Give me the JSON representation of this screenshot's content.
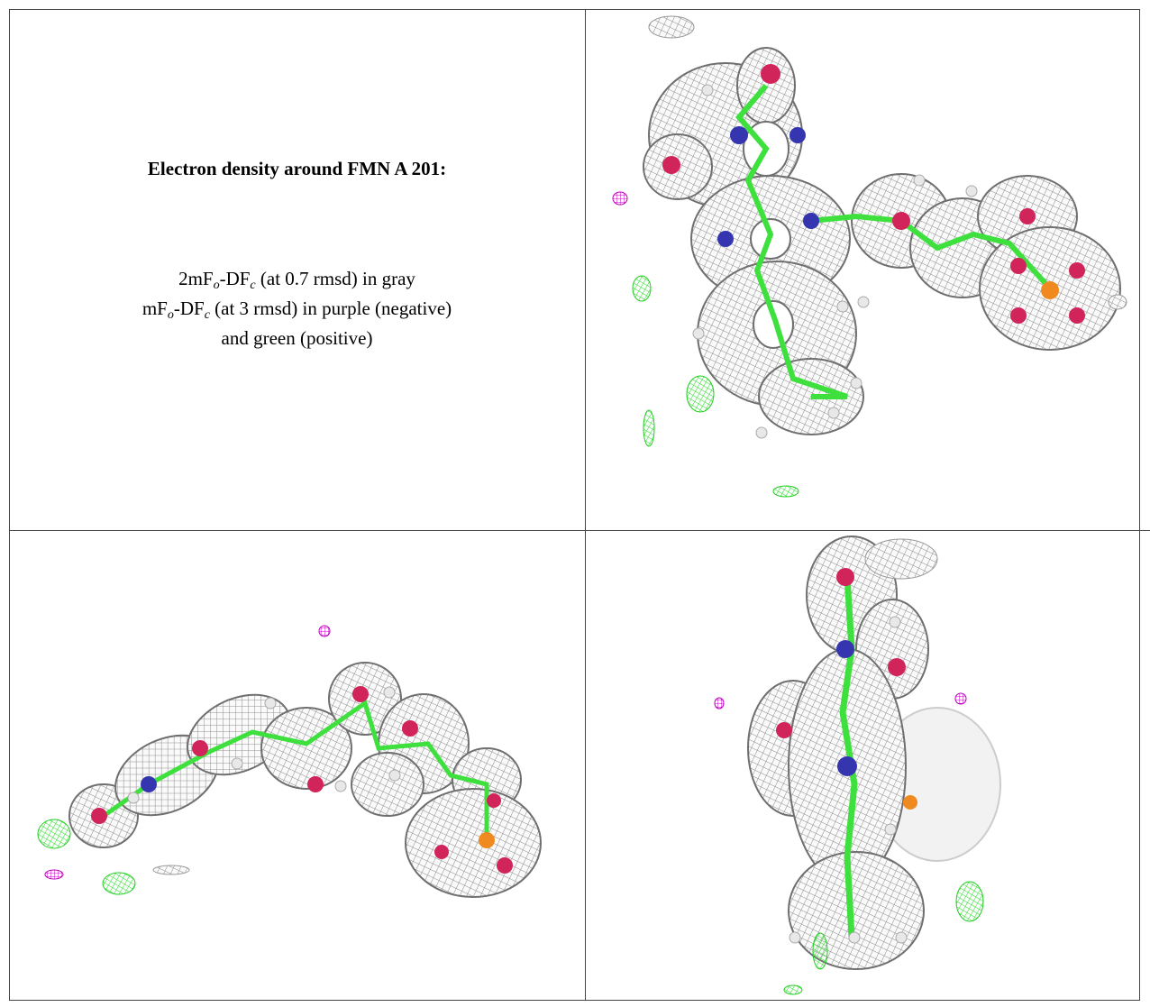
{
  "caption": {
    "title": "Electron density around FMN A 201:",
    "lines": [
      [
        {
          "text": "2mF"
        },
        {
          "sub": "o"
        },
        {
          "text": "-DF"
        },
        {
          "sub": "c"
        },
        {
          "text": " (at 0.7 rmsd) in gray"
        }
      ],
      [
        {
          "text": "mF"
        },
        {
          "sub": "o"
        },
        {
          "text": "-DF"
        },
        {
          "sub": "c"
        },
        {
          "text": " (at 3 rmsd) in purple (negative)"
        }
      ],
      [
        {
          "text": "and green (positive)"
        }
      ]
    ]
  }
}
